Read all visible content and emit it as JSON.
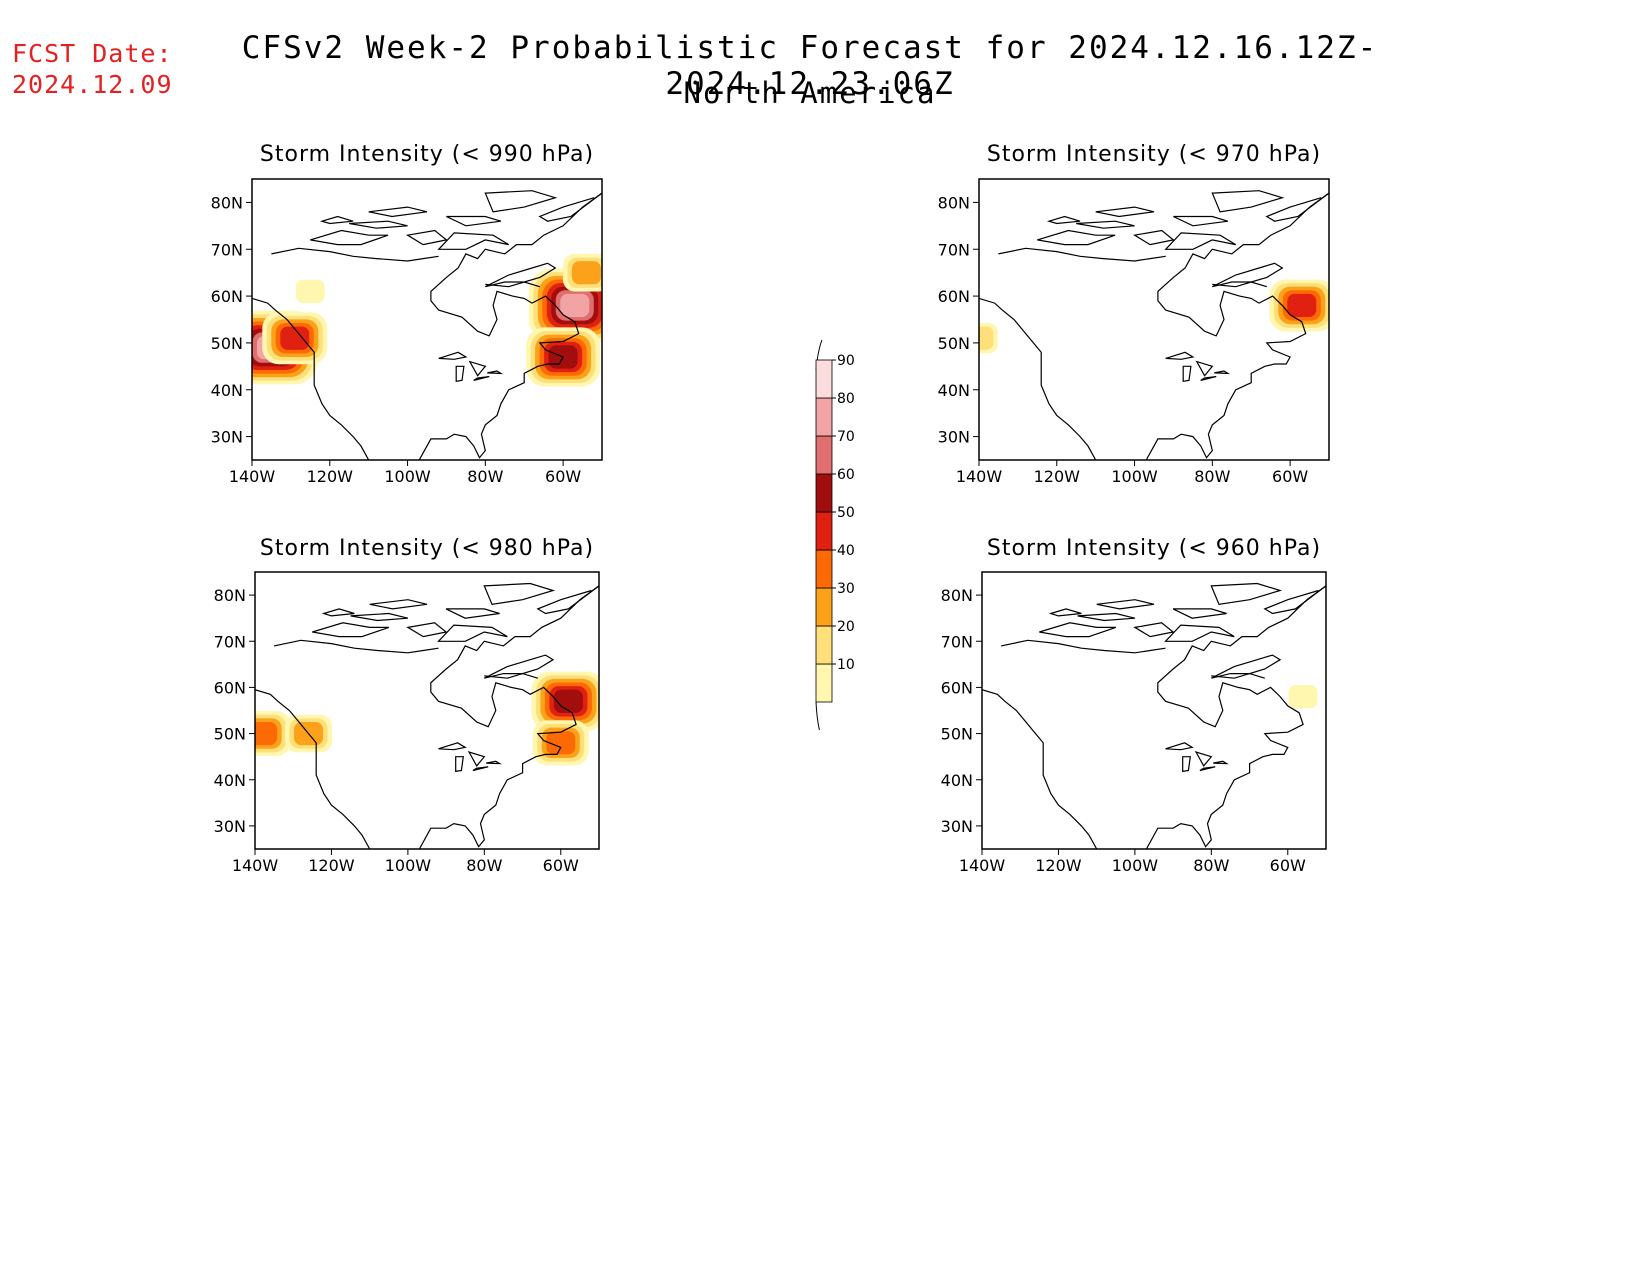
{
  "header": {
    "fcst_label": "FCST Date:",
    "fcst_date": "2024.12.09",
    "title": "CFSv2 Week-2 Probabilistic Forecast for 2024.12.16.12Z-2024.12.23.06Z",
    "subtitle": "North America"
  },
  "axes": {
    "lat_ticks": [
      "80N",
      "70N",
      "60N",
      "50N",
      "40N",
      "30N"
    ],
    "lon_ticks": [
      "140W",
      "120W",
      "100W",
      "80W",
      "60W"
    ]
  },
  "panels": [
    {
      "title": "Storm Intensity (< 990 hPa)",
      "id": "990",
      "regions": [
        {
          "lon": -135,
          "lat": 49,
          "prob": 85
        },
        {
          "lon": -129,
          "lat": 51,
          "prob": 55
        },
        {
          "lon": -57,
          "lat": 58,
          "prob": 85
        },
        {
          "lon": -60,
          "lat": 47,
          "prob": 60
        },
        {
          "lon": -54,
          "lat": 65,
          "prob": 35
        },
        {
          "lon": -125,
          "lat": 61,
          "prob": 15
        }
      ]
    },
    {
      "title": "Storm Intensity (< 970 hPa)",
      "id": "970",
      "regions": [
        {
          "lon": -57,
          "lat": 58,
          "prob": 50
        },
        {
          "lon": -140,
          "lat": 51,
          "prob": 20
        }
      ]
    },
    {
      "title": "Storm Intensity (< 980 hPa)",
      "id": "980",
      "regions": [
        {
          "lon": -58,
          "lat": 57,
          "prob": 65
        },
        {
          "lon": -138,
          "lat": 50,
          "prob": 45
        },
        {
          "lon": -60,
          "lat": 48,
          "prob": 40
        },
        {
          "lon": -126,
          "lat": 50,
          "prob": 35
        }
      ]
    },
    {
      "title": "Storm Intensity (< 960 hPa)",
      "id": "960",
      "regions": [
        {
          "lon": -56,
          "lat": 58,
          "prob": 10
        }
      ]
    }
  ],
  "colorbar": {
    "labels": [
      "10",
      "20",
      "30",
      "40",
      "50",
      "60",
      "70",
      "80",
      "90"
    ],
    "colors": [
      "#fff6b0",
      "#fde07a",
      "#fba11a",
      "#fb6a05",
      "#e02010",
      "#a20d0d",
      "#e06e6e",
      "#f2a4a4",
      "#fbdcdc"
    ]
  },
  "colors": {
    "fcst_date": "#e52020"
  }
}
